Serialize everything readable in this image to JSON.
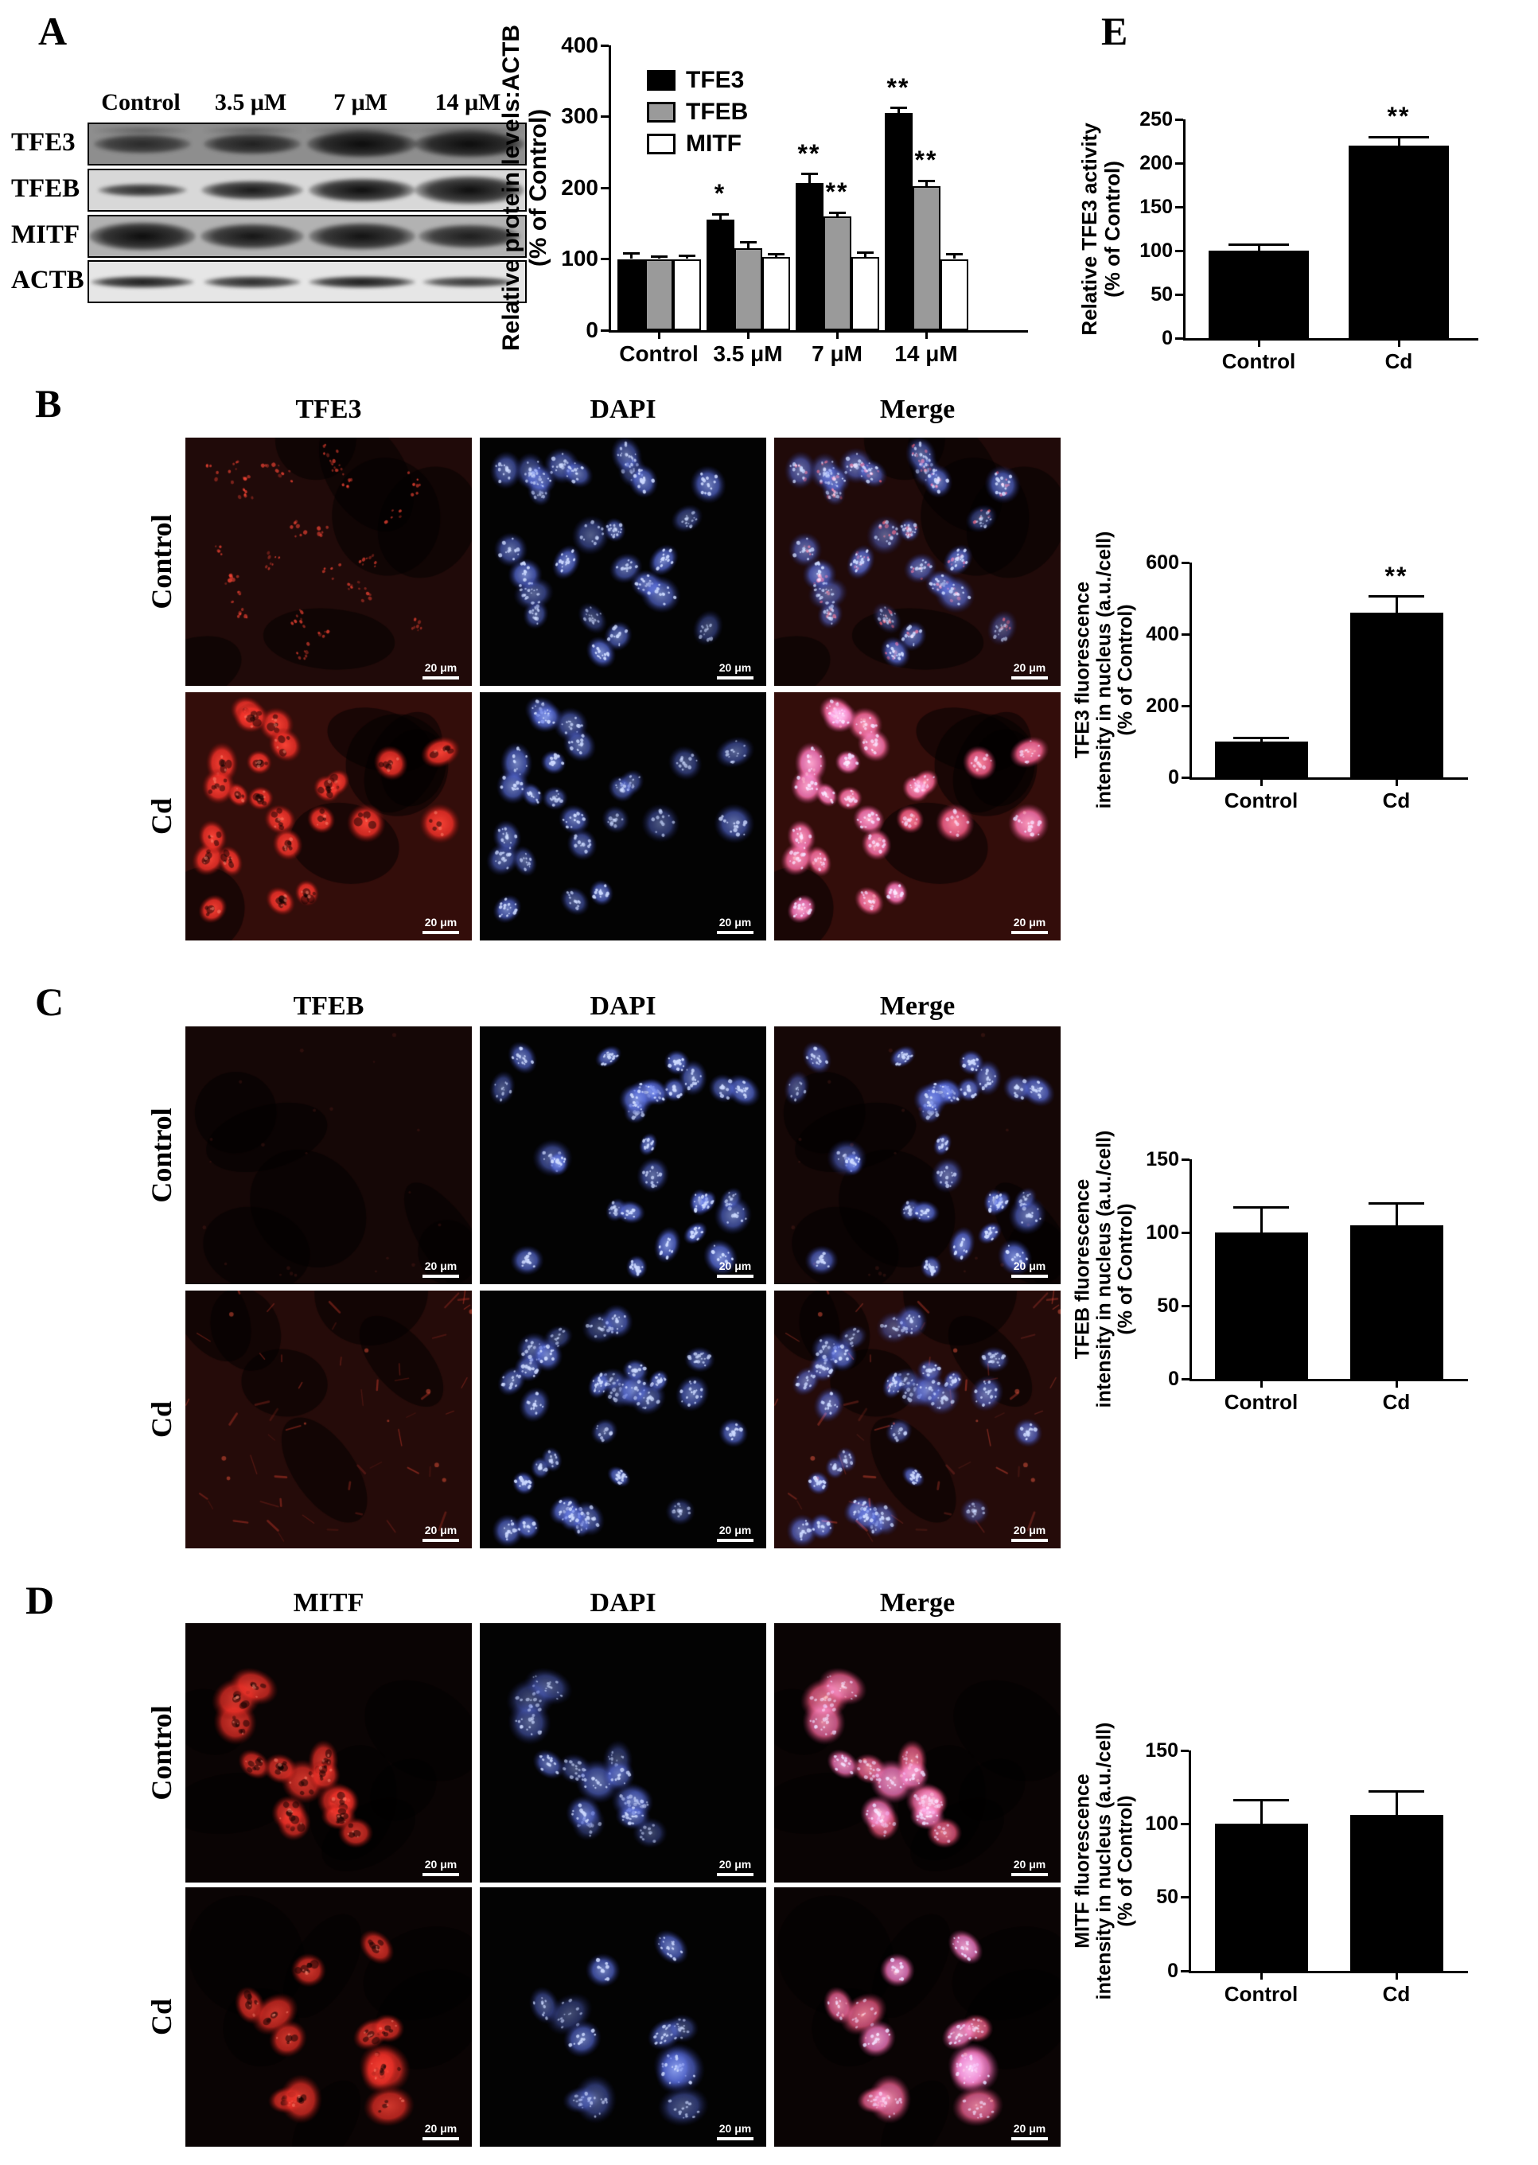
{
  "colors": {
    "red_channel": "#f03028",
    "blue_channel": "#5a6fe0",
    "bar_black": "#000000",
    "bar_gray": "#9a9a9a",
    "bar_white": "#ffffff"
  },
  "panels": {
    "a": {
      "letter": "A",
      "blot": {
        "lanes": [
          "Control",
          "3.5 μM",
          "7 μM",
          "14 μM"
        ],
        "rows": [
          {
            "label": "TFE3",
            "bg": "#8e8e8e",
            "band_alpha": [
              0.78,
              0.85,
              1,
              1
            ],
            "band_h": [
              24,
              26,
              34,
              34
            ],
            "band_w": [
              122,
              122,
              138,
              138
            ],
            "double_band": true
          },
          {
            "label": "TFEB",
            "bg": "#d8d8d8",
            "band_alpha": [
              0.85,
              0.95,
              1,
              1
            ],
            "band_h": [
              16,
              24,
              30,
              36
            ],
            "band_w": [
              112,
              128,
              134,
              138
            ],
            "double_band": false
          },
          {
            "label": "MITF",
            "bg": "#b2b2b2",
            "band_alpha": [
              1,
              0.95,
              0.97,
              0.9
            ],
            "band_h": [
              36,
              32,
              34,
              30
            ],
            "band_w": [
              134,
              130,
              134,
              128
            ],
            "double_band": false
          },
          {
            "label": "ACTB",
            "bg": "#e6e6e6",
            "band_alpha": [
              0.95,
              0.88,
              0.95,
              0.82
            ],
            "band_h": [
              15,
              15,
              15,
              13
            ],
            "band_w": [
              130,
              122,
              134,
              118
            ],
            "double_band": false
          }
        ]
      }
    },
    "b": {
      "letter": "B",
      "columns": [
        "TFE3",
        "DAPI",
        "Merge"
      ],
      "rows": [
        "Control",
        "Cd"
      ],
      "scale_label": "20 μm"
    },
    "c": {
      "letter": "C",
      "columns": [
        "TFEB",
        "DAPI",
        "Merge"
      ],
      "rows": [
        "Control",
        "Cd"
      ],
      "scale_label": "20 μm"
    },
    "d": {
      "letter": "D",
      "columns": [
        "MITF",
        "DAPI",
        "Merge"
      ],
      "rows": [
        "Control",
        "Cd"
      ],
      "scale_label": "20 μm"
    },
    "e": {
      "letter": "E"
    }
  },
  "chart_data": [
    {
      "id": "a",
      "type": "bar",
      "ylabel_lines": [
        "Relative protein levels:ACTB",
        "(% of Control)"
      ],
      "ylim": [
        0,
        400
      ],
      "yticks": [
        0,
        100,
        200,
        300,
        400
      ],
      "categories": [
        "Control",
        "3.5 μM",
        "7 μM",
        "14 μM"
      ],
      "legend_position": "top-left",
      "series": [
        {
          "name": "TFE3",
          "color": "#000000",
          "values": [
            100,
            155,
            207,
            305
          ],
          "errors": [
            8,
            8,
            12,
            7
          ],
          "sig": [
            "",
            "*",
            "**",
            "**"
          ]
        },
        {
          "name": "TFEB",
          "color": "#9a9a9a",
          "values": [
            100,
            115,
            160,
            202
          ],
          "errors": [
            3,
            8,
            5,
            8
          ],
          "sig": [
            "",
            "",
            "**",
            "**"
          ]
        },
        {
          "name": "MITF",
          "color": "#ffffff",
          "values": [
            100,
            103,
            103,
            100
          ],
          "errors": [
            4,
            4,
            6,
            7
          ],
          "sig": [
            "",
            "",
            "",
            ""
          ]
        }
      ]
    },
    {
      "id": "e",
      "type": "bar",
      "ylabel_lines": [
        "Relative TFE3 activity",
        "(% of Control)"
      ],
      "ylim": [
        0,
        250
      ],
      "yticks": [
        0,
        50,
        100,
        150,
        200,
        250
      ],
      "categories": [
        "Control",
        "Cd"
      ],
      "series": [
        {
          "name": "TFE3 activity",
          "color": "#000000",
          "values": [
            100,
            220
          ],
          "errors": [
            7,
            10
          ],
          "sig": [
            "",
            "**"
          ]
        }
      ]
    },
    {
      "id": "b",
      "type": "bar",
      "ylabel_lines": [
        "TFE3 fluorescence",
        "intensity in nucleus (a.u./cell)",
        "(% of Control)"
      ],
      "ylim": [
        0,
        600
      ],
      "yticks": [
        0,
        200,
        400,
        600
      ],
      "categories": [
        "Control",
        "Cd"
      ],
      "series": [
        {
          "name": "TFE3 fluorescence",
          "color": "#000000",
          "values": [
            100,
            460
          ],
          "errors": [
            10,
            45
          ],
          "sig": [
            "",
            "**"
          ]
        }
      ]
    },
    {
      "id": "c",
      "type": "bar",
      "ylabel_lines": [
        "TFEB fluorescence",
        "intensity in nucleus (a.u./cell)",
        "(% of Control)"
      ],
      "ylim": [
        0,
        150
      ],
      "yticks": [
        0,
        50,
        100,
        150
      ],
      "categories": [
        "Control",
        "Cd"
      ],
      "series": [
        {
          "name": "TFEB fluorescence",
          "color": "#000000",
          "values": [
            100,
            105
          ],
          "errors": [
            17,
            15
          ],
          "sig": [
            "",
            ""
          ]
        }
      ]
    },
    {
      "id": "d",
      "type": "bar",
      "ylabel_lines": [
        "MITF fluorescence",
        "intensity in nucleus (a.u./cell)",
        "(% of Control)"
      ],
      "ylim": [
        0,
        150
      ],
      "yticks": [
        0,
        50,
        100,
        150
      ],
      "categories": [
        "Control",
        "Cd"
      ],
      "series": [
        {
          "name": "MITF fluorescence",
          "color": "#000000",
          "values": [
            100,
            106
          ],
          "errors": [
            16,
            16
          ],
          "sig": [
            "",
            ""
          ]
        }
      ]
    }
  ],
  "micrographs": {
    "b_control": {
      "seed": 11,
      "count": 26,
      "cluster": false,
      "r": [
        15,
        26
      ],
      "red_mode": "speckle",
      "blue_alpha": 0.8
    },
    "b_cd": {
      "seed": 12,
      "count": 24,
      "cluster": false,
      "r": [
        16,
        27
      ],
      "red_mode": "nucleus_bright",
      "blue_alpha": 0.8
    },
    "c_control": {
      "seed": 23,
      "count": 27,
      "cluster": false,
      "r": [
        15,
        26
      ],
      "red_mode": "faint",
      "blue_alpha": 0.85
    },
    "c_cd": {
      "seed": 24,
      "count": 30,
      "cluster": false,
      "r": [
        14,
        24
      ],
      "red_mode": "streaks",
      "blue_alpha": 0.8
    },
    "d_control": {
      "seed": 35,
      "count": 14,
      "cluster": true,
      "r": [
        20,
        32
      ],
      "red_mode": "nucleus_moderate",
      "blue_alpha": 0.7
    },
    "d_cd": {
      "seed": 36,
      "count": 12,
      "cluster": true,
      "r": [
        21,
        34
      ],
      "red_mode": "nucleus_moderate",
      "blue_alpha": 0.78
    }
  }
}
